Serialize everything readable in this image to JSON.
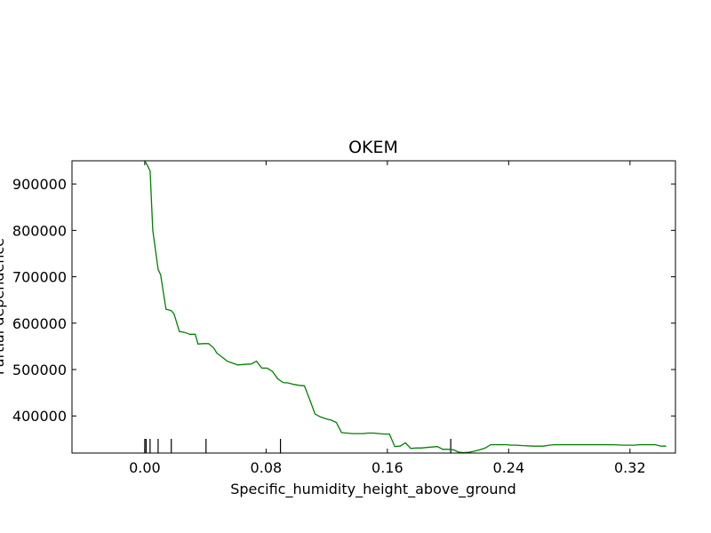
{
  "chart_data": {
    "type": "line",
    "title": "OKEM",
    "xlabel": "Specific_humidity_height_above_ground",
    "ylabel": "Partial dependence",
    "xlim": [
      -0.048,
      0.35
    ],
    "ylim": [
      320000,
      950000
    ],
    "x_ticks": [
      0.0,
      0.08,
      0.16,
      0.24,
      0.32
    ],
    "x_tick_labels": [
      "0.00",
      "0.08",
      "0.16",
      "0.24",
      "0.32"
    ],
    "y_ticks": [
      400000,
      500000,
      600000,
      700000,
      800000,
      900000
    ],
    "y_tick_labels": [
      "400000",
      "500000",
      "600000",
      "700000",
      "800000",
      "900000"
    ],
    "line_color": "#008000",
    "grid": false,
    "series": [
      {
        "x": [
          0.0,
          0.0017,
          0.0035,
          0.0053,
          0.0088,
          0.0105,
          0.0123,
          0.014,
          0.0175,
          0.0193,
          0.0228,
          0.0263,
          0.0298,
          0.0333,
          0.0351,
          0.0386,
          0.0421,
          0.0456,
          0.0474,
          0.0544,
          0.0579,
          0.0614,
          0.0649,
          0.0702,
          0.0737,
          0.0772,
          0.0807,
          0.0842,
          0.0877,
          0.0912,
          0.0947,
          0.0982,
          0.1018,
          0.1053,
          0.1088,
          0.1123,
          0.1158,
          0.1193,
          0.1228,
          0.1263,
          0.1298,
          0.1333,
          0.1368,
          0.1404,
          0.1439,
          0.1474,
          0.1509,
          0.1544,
          0.1579,
          0.1614,
          0.1649,
          0.1684,
          0.1719,
          0.1754,
          0.1789,
          0.1825,
          0.186,
          0.1895,
          0.193,
          0.1965,
          0.2,
          0.2035,
          0.207,
          0.2105,
          0.214,
          0.2175,
          0.2211,
          0.2246,
          0.2281,
          0.2316,
          0.2351,
          0.2386,
          0.2421,
          0.2456,
          0.2491,
          0.2561,
          0.2632,
          0.2667,
          0.2702,
          0.2772,
          0.2807,
          0.2877,
          0.2947,
          0.3018,
          0.3088,
          0.3158,
          0.3228,
          0.3263,
          0.3298,
          0.3333,
          0.3368,
          0.3404,
          0.3439
        ],
        "y": [
          950000,
          940000,
          928000,
          800000,
          716000,
          704000,
          665000,
          630000,
          627000,
          620000,
          582000,
          580000,
          576000,
          576000,
          555000,
          556000,
          556000,
          546000,
          536000,
          518000,
          514000,
          510000,
          511000,
          512000,
          518000,
          503000,
          503000,
          496000,
          480000,
          472000,
          471000,
          468000,
          466000,
          465000,
          435000,
          404000,
          398000,
          394000,
          391000,
          386000,
          364000,
          363000,
          362000,
          362000,
          362000,
          363000,
          363000,
          362000,
          361000,
          361000,
          334000,
          335000,
          342000,
          330000,
          331000,
          331000,
          332000,
          333000,
          334000,
          328000,
          328000,
          327000,
          322000,
          321000,
          322000,
          324000,
          327000,
          331000,
          338000,
          338000,
          338000,
          338000,
          337000,
          337000,
          336000,
          335000,
          335000,
          337000,
          338000,
          338000,
          338000,
          338000,
          338000,
          338000,
          338000,
          337000,
          337000,
          338000,
          338000,
          338000,
          338000,
          335000,
          335000
        ]
      }
    ],
    "rug_x": [
      0.0,
      0.0009,
      0.0035,
      0.0088,
      0.0175,
      0.0404,
      0.0895,
      0.2018
    ]
  }
}
